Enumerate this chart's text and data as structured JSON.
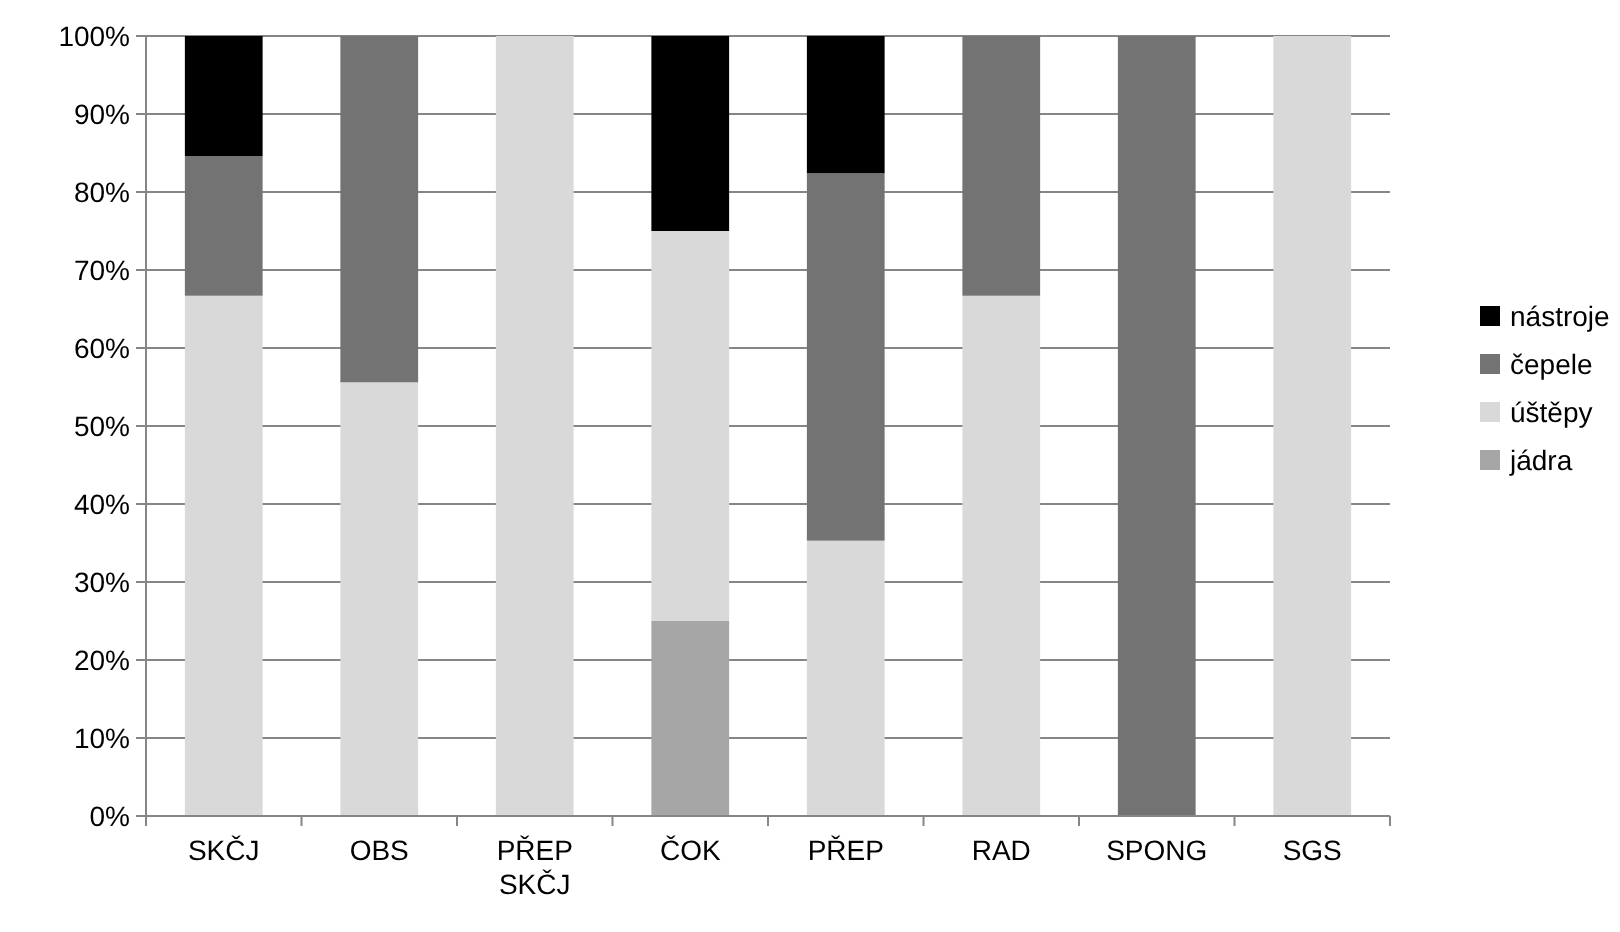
{
  "chart_data": {
    "type": "bar",
    "stacked": true,
    "categories": [
      "SKČJ",
      "OBS",
      "PŘEP SKČJ",
      "ČOK",
      "PŘEP",
      "RAD",
      "SPONG",
      "SGS"
    ],
    "series": [
      {
        "name": "jádra",
        "color": "#a6a6a6",
        "values": [
          0,
          0,
          0,
          25,
          0,
          0,
          0,
          0
        ]
      },
      {
        "name": "úštěpy",
        "color": "#d9d9d9",
        "values": [
          66.7,
          55.6,
          100,
          50,
          35.3,
          66.7,
          0,
          100
        ]
      },
      {
        "name": "čepele",
        "color": "#737373",
        "values": [
          17.9,
          44.4,
          0,
          0,
          47.1,
          33.3,
          100,
          0
        ]
      },
      {
        "name": "nástroje",
        "color": "#000000",
        "values": [
          15.4,
          0,
          0,
          25,
          17.6,
          0,
          0,
          0
        ]
      }
    ],
    "ylim": [
      0,
      100
    ],
    "yticks": [
      {
        "value": 0,
        "label": "0%"
      },
      {
        "value": 10,
        "label": "10%"
      },
      {
        "value": 20,
        "label": "20%"
      },
      {
        "value": 30,
        "label": "30%"
      },
      {
        "value": 40,
        "label": "40%"
      },
      {
        "value": 50,
        "label": "50%"
      },
      {
        "value": 60,
        "label": "60%"
      },
      {
        "value": 70,
        "label": "70%"
      },
      {
        "value": 80,
        "label": "80%"
      },
      {
        "value": 90,
        "label": "90%"
      },
      {
        "value": 100,
        "label": "100%"
      }
    ],
    "grid": "y",
    "legend": "right"
  }
}
